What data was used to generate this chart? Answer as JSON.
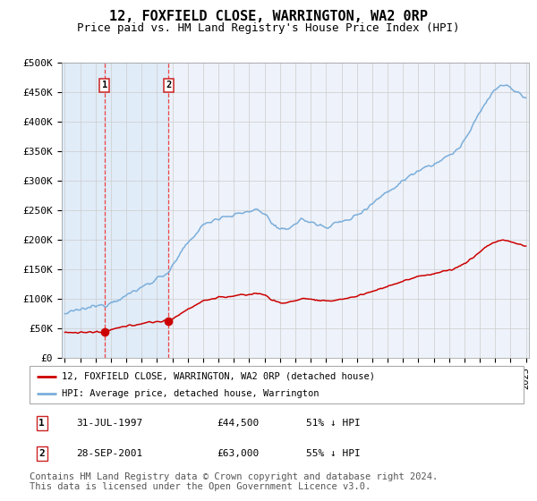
{
  "title": "12, FOXFIELD CLOSE, WARRINGTON, WA2 0RP",
  "subtitle": "Price paid vs. HM Land Registry's House Price Index (HPI)",
  "title_fontsize": 11,
  "subtitle_fontsize": 9,
  "background_color": "#ffffff",
  "plot_bg_color": "#eef2fa",
  "grid_color": "#cccccc",
  "ylim": [
    0,
    500000
  ],
  "xlim_start": 1994.8,
  "xlim_end": 2025.2,
  "yticks": [
    0,
    50000,
    100000,
    150000,
    200000,
    250000,
    300000,
    350000,
    400000,
    450000,
    500000
  ],
  "ytick_labels": [
    "£0",
    "£50K",
    "£100K",
    "£150K",
    "£200K",
    "£250K",
    "£300K",
    "£350K",
    "£400K",
    "£450K",
    "£500K"
  ],
  "purchase1_x": 1997.58,
  "purchase1_y": 44500,
  "purchase2_x": 2001.75,
  "purchase2_y": 63000,
  "red_line_color": "#cc0000",
  "blue_line_color": "#7aaedb",
  "marker_color": "#cc0000",
  "vline_color": "#ee4444",
  "shade_color": "#d6e8f7",
  "legend_line1": "12, FOXFIELD CLOSE, WARRINGTON, WA2 0RP (detached house)",
  "legend_line2": "HPI: Average price, detached house, Warrington",
  "purchase1_date": "31-JUL-1997",
  "purchase1_price": "£44,500",
  "purchase1_hpi": "51% ↓ HPI",
  "purchase2_date": "28-SEP-2001",
  "purchase2_price": "£63,000",
  "purchase2_hpi": "55% ↓ HPI",
  "footer": "Contains HM Land Registry data © Crown copyright and database right 2024.\nThis data is licensed under the Open Government Licence v3.0.",
  "footer_fontsize": 7.5
}
